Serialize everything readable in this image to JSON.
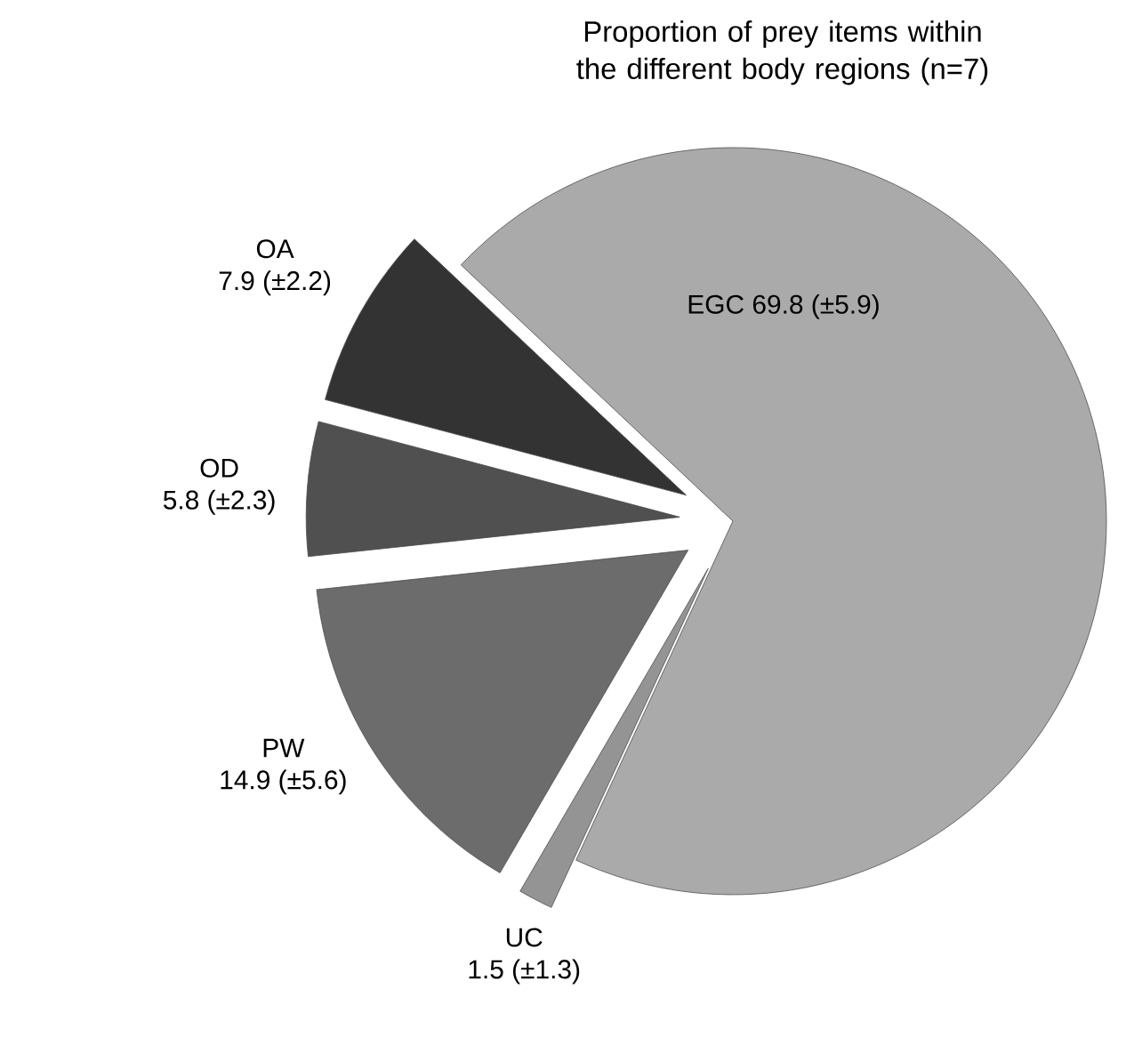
{
  "chart_data": {
    "type": "pie",
    "title": "Proportion of prey items within the different body regions (n=7)",
    "categories": [
      "EGC",
      "UC",
      "PW",
      "OD",
      "OA"
    ],
    "values": [
      69.8,
      1.5,
      14.9,
      5.8,
      7.9
    ],
    "value_labels": [
      "69.8 (±5.9)",
      "1.5 (±1.3)",
      "14.9 (±5.6)",
      "5.8 (±2.3)",
      "7.9 (±2.2)"
    ],
    "colors": [
      "#aaaaaa",
      "#949494",
      "#6c6c6c",
      "#505050",
      "#333333"
    ]
  }
}
